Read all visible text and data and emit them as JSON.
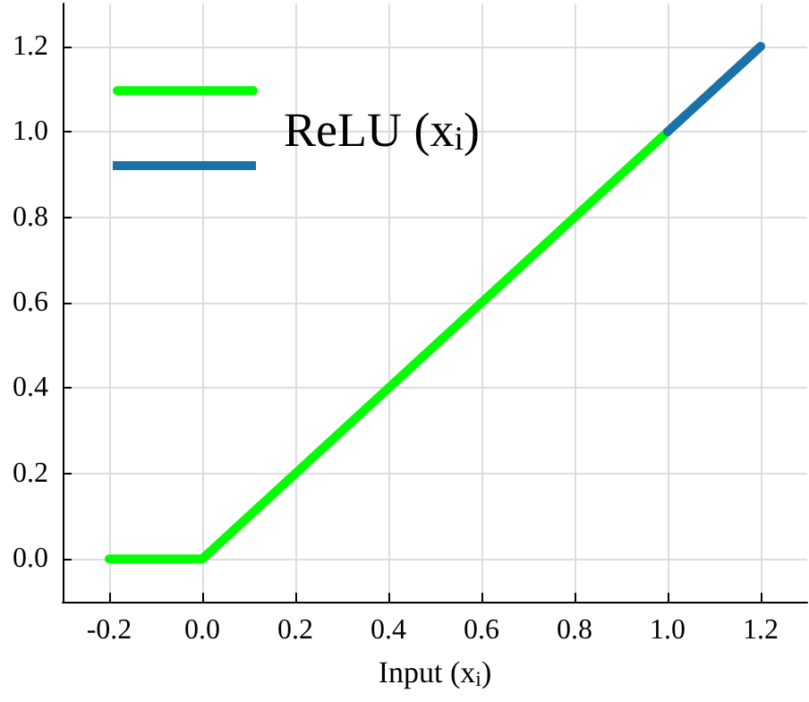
{
  "chart_data": {
    "type": "line",
    "xlabel": "Input (x$_{i}$)",
    "series": [
      {
        "name": "ReLU (x$_{i}$)",
        "color": "#00ff00",
        "x": [
          -0.2,
          0.0,
          1.0
        ],
        "values": [
          0,
          0,
          1.0
        ]
      },
      {
        "color": "#1a72a8",
        "x": [
          1.0,
          1.2
        ],
        "values": [
          1.0,
          1.2
        ]
      }
    ],
    "xlim": [
      -0.3,
      1.3
    ],
    "ylim": [
      -0.1,
      1.3
    ],
    "xticks": [
      {
        "value": -0.2,
        "label": "-0.2"
      },
      {
        "value": 0,
        "label": "0.0"
      },
      {
        "value": 0.2,
        "label": "0.2"
      },
      {
        "value": 0.4,
        "label": "0.4"
      },
      {
        "value": 0.6,
        "label": "0.6"
      },
      {
        "value": 0.8,
        "label": "0.8"
      },
      {
        "value": 1.0,
        "label": "1.0"
      },
      {
        "value": 1.2,
        "label": "1.2"
      }
    ],
    "yticks": [
      {
        "value": 0,
        "label": "0.0"
      },
      {
        "value": 0.2,
        "label": "0.2"
      },
      {
        "value": 0.4,
        "label": "0.4"
      },
      {
        "value": 0.6,
        "label": "0.6"
      },
      {
        "value": 0.8,
        "label": "0.8"
      },
      {
        "value": 1.0,
        "label": "1.0"
      },
      {
        "value": 1.2,
        "label": "1.2"
      }
    ],
    "grid": true,
    "legend": "top left",
    "marker": "none",
    "line_style": "solid"
  }
}
